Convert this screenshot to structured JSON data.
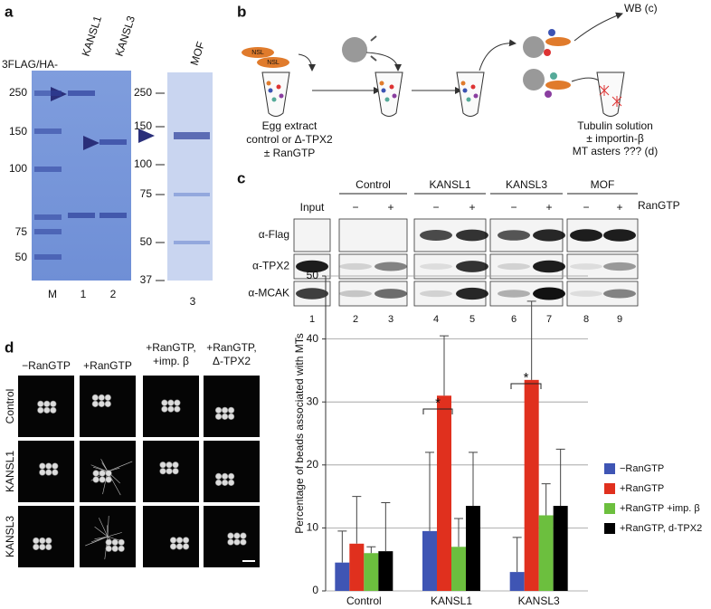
{
  "panel_a": {
    "label": "a",
    "construct_prefix": "3FLAG/HA-",
    "lanes_top": [
      "KANSL1",
      "KANSL3",
      "MOF"
    ],
    "markers_left": [
      "250",
      "150",
      "100",
      "75",
      "50"
    ],
    "markers_right": [
      "250",
      "150",
      "100",
      "75",
      "50",
      "37"
    ],
    "lanes_bottom": [
      "M",
      "1",
      "2",
      "3"
    ]
  },
  "panel_b": {
    "label": "b",
    "nsl": [
      "NSL",
      "NSL"
    ],
    "wb": "WB (c)",
    "extract": [
      "Egg extract",
      "control or Δ-TPX2",
      "± RanGTP"
    ],
    "tubulin": [
      "Tubulin solution",
      "± importin-β",
      "MT asters ??? (d)"
    ]
  },
  "panel_c": {
    "label": "c",
    "input": "Input",
    "groups": [
      "Control",
      "KANSL1",
      "KANSL3",
      "MOF"
    ],
    "signs": [
      "−",
      "+",
      "−",
      "+",
      "−",
      "+",
      "−",
      "+"
    ],
    "ran": "RanGTP",
    "antibodies": [
      "α-Flag",
      "α-TPX2",
      "α-MCAK"
    ],
    "lanes": [
      "1",
      "2",
      "3",
      "4",
      "5",
      "6",
      "7",
      "8",
      "9"
    ]
  },
  "panel_d": {
    "label": "d",
    "columns": [
      [
        "−RanGTP"
      ],
      [
        "+RanGTP"
      ],
      [
        "+RanGTP,",
        "+imp. β"
      ],
      [
        "+RanGTP,",
        "Δ-TPX2"
      ]
    ],
    "rows": [
      "Control",
      "KANSL1",
      "KANSL3"
    ]
  },
  "chart_data": {
    "type": "bar",
    "ylabel": "Percentage of beads associated with MTs",
    "categories": [
      "Control",
      "KANSL1",
      "KANSL3"
    ],
    "series": [
      {
        "name": "−RanGTP",
        "color": "#3f55b4",
        "values": [
          4.5,
          9.5,
          3
        ],
        "errors": [
          5,
          12.5,
          5.5
        ]
      },
      {
        "name": "+RanGTP",
        "color": "#e0301e",
        "values": [
          7.5,
          31,
          33.5
        ],
        "errors": [
          7.5,
          9.5,
          12.5
        ]
      },
      {
        "name": "+RanGTP +imp. β",
        "color": "#6cbf3e",
        "values": [
          6,
          7,
          12
        ],
        "errors": [
          1,
          4.5,
          5
        ]
      },
      {
        "name": "+RanGTP, d-TPX2",
        "color": "#000000",
        "values": [
          6.3,
          13.5,
          13.5
        ],
        "errors": [
          7.7,
          8.5,
          9
        ]
      }
    ],
    "annotations": [
      "*",
      "*"
    ],
    "ylim": [
      0,
      50
    ],
    "yticks": [
      0,
      10,
      20,
      30,
      40,
      50
    ],
    "grid": true
  }
}
